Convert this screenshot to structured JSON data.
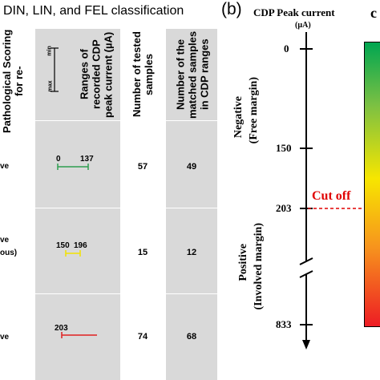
{
  "left_panel": {
    "title": "DIN, LIN, and FEL classification",
    "header_scoring": "Pathological Scoring for re-",
    "header_ranges": "Ranges of recorded CDP peak current (µA)",
    "scale_min": "min",
    "scale_max": "max",
    "header_tested": "Number of tested samples",
    "header_matched": "Number of the matched samples in CDP ranges",
    "rows": [
      {
        "label": "ve",
        "range_min": "0",
        "range_max": "137",
        "tested": "57",
        "matched": "49",
        "color": "#2e9e4f"
      },
      {
        "label": "ve",
        "label2": "ous)",
        "range_min": "150",
        "range_max": "196",
        "tested": "15",
        "matched": "12",
        "color": "#f2e200"
      },
      {
        "label": "ve",
        "range_min": "203",
        "range_max": "",
        "tested": "74",
        "matched": "68",
        "color": "#e02020"
      }
    ]
  },
  "right_panel": {
    "panel_label": "(b)",
    "axis_title": "CDP Peak current",
    "axis_unit": "(µA)",
    "ticks": [
      "0",
      "150",
      "203",
      "833"
    ],
    "cutoff_label": "Cut off",
    "negative_label": "Negative",
    "negative_sub": "(Free margin)",
    "positive_label": "Positive",
    "positive_sub": "(Involved margin)",
    "corner_letter": "c",
    "colors": {
      "cutoff": "#e00000",
      "gradient_top": "#00a651",
      "gradient_mid": "#f7e600",
      "gradient_bottom": "#ed1c24"
    }
  }
}
